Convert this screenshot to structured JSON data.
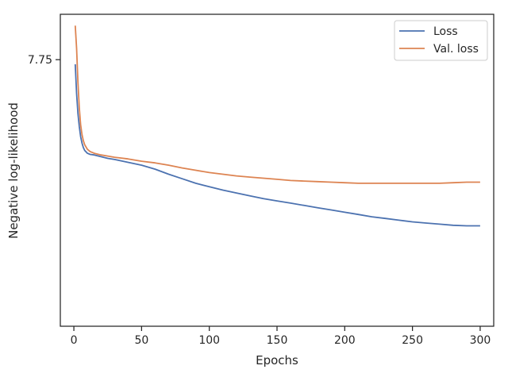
{
  "chart_data": {
    "type": "line",
    "title": "",
    "xlabel": "Epochs",
    "ylabel": "Negative log-likelihood",
    "xlim": [
      -10,
      310
    ],
    "ylim": [
      7.28,
      7.83
    ],
    "xticks": [
      0,
      50,
      100,
      150,
      200,
      250,
      300
    ],
    "yticks": [
      7.75
    ],
    "ytick_labels": [
      "7.75"
    ],
    "grid": false,
    "legend_position": "top-right",
    "series": [
      {
        "name": "Loss",
        "color": "#4c72b0",
        "x": [
          1,
          2,
          3,
          4,
          5,
          6,
          7,
          8,
          10,
          12,
          15,
          20,
          25,
          30,
          40,
          50,
          60,
          70,
          80,
          90,
          100,
          110,
          120,
          130,
          140,
          150,
          160,
          170,
          180,
          190,
          200,
          210,
          220,
          230,
          240,
          250,
          260,
          270,
          280,
          290,
          300
        ],
        "y": [
          7.742,
          7.69,
          7.655,
          7.632,
          7.614,
          7.603,
          7.595,
          7.59,
          7.585,
          7.583,
          7.582,
          7.579,
          7.576,
          7.574,
          7.569,
          7.564,
          7.557,
          7.548,
          7.54,
          7.532,
          7.526,
          7.52,
          7.515,
          7.51,
          7.505,
          7.501,
          7.497,
          7.493,
          7.489,
          7.485,
          7.481,
          7.477,
          7.473,
          7.47,
          7.467,
          7.464,
          7.462,
          7.46,
          7.458,
          7.457,
          7.457
        ]
      },
      {
        "name": "Val. loss",
        "color": "#dd8452",
        "x": [
          1,
          2,
          3,
          4,
          5,
          6,
          7,
          8,
          10,
          12,
          15,
          20,
          25,
          30,
          40,
          50,
          60,
          70,
          80,
          90,
          100,
          110,
          120,
          130,
          140,
          150,
          160,
          170,
          180,
          190,
          200,
          210,
          220,
          230,
          240,
          250,
          260,
          270,
          280,
          290,
          300
        ],
        "y": [
          7.81,
          7.77,
          7.71,
          7.665,
          7.635,
          7.618,
          7.607,
          7.6,
          7.592,
          7.588,
          7.585,
          7.582,
          7.58,
          7.578,
          7.575,
          7.571,
          7.568,
          7.564,
          7.559,
          7.555,
          7.551,
          7.548,
          7.545,
          7.543,
          7.541,
          7.539,
          7.537,
          7.536,
          7.535,
          7.534,
          7.533,
          7.532,
          7.532,
          7.532,
          7.532,
          7.532,
          7.532,
          7.532,
          7.533,
          7.534,
          7.534
        ]
      }
    ]
  }
}
